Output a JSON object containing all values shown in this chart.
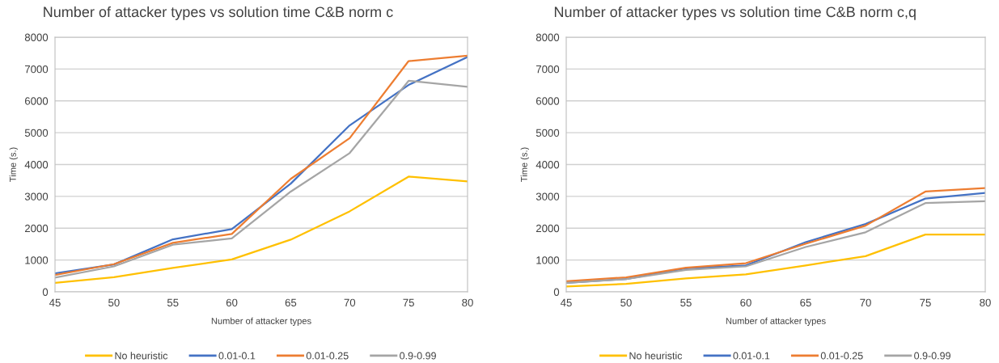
{
  "chart_data": [
    {
      "type": "line",
      "title": "Number of attacker types vs solution time C&B norm c",
      "xlabel": "Number of attacker types",
      "ylabel": "Time (s.)",
      "x": [
        45,
        50,
        55,
        60,
        65,
        70,
        75,
        80
      ],
      "xlim": [
        45,
        80
      ],
      "xticks": [
        45,
        50,
        55,
        60,
        65,
        70,
        75,
        80
      ],
      "ylim": [
        0,
        8000
      ],
      "yticks": [
        0,
        1000,
        2000,
        3000,
        4000,
        5000,
        6000,
        7000,
        8000
      ],
      "grid": "y",
      "legend": "bottom",
      "marker": "none",
      "line_style": "solid",
      "series": [
        {
          "name": "No heuristic",
          "color": "#ffc000",
          "values": [
            280,
            460,
            750,
            1020,
            1640,
            2530,
            3620,
            3470
          ]
        },
        {
          "name": "0.01-0.1",
          "color": "#4472c4",
          "values": [
            580,
            860,
            1650,
            1970,
            3400,
            5230,
            6500,
            7380
          ]
        },
        {
          "name": "0.01-0.25",
          "color": "#ed7d31",
          "values": [
            530,
            870,
            1540,
            1820,
            3550,
            4830,
            7250,
            7420
          ]
        },
        {
          "name": "0.9-0.99",
          "color": "#a5a5a5",
          "values": [
            450,
            800,
            1480,
            1680,
            3150,
            4360,
            6630,
            6440
          ]
        }
      ]
    },
    {
      "type": "line",
      "title": "Number of attacker types vs solution time C&B norm c,q",
      "xlabel": "Number of attacker types",
      "ylabel": "Time (s.)",
      "x": [
        45,
        50,
        55,
        60,
        65,
        70,
        75,
        80
      ],
      "xlim": [
        45,
        80
      ],
      "xticks": [
        45,
        50,
        55,
        60,
        65,
        70,
        75,
        80
      ],
      "ylim": [
        0,
        8000
      ],
      "yticks": [
        0,
        1000,
        2000,
        3000,
        4000,
        5000,
        6000,
        7000,
        8000
      ],
      "grid": "y",
      "legend": "bottom",
      "marker": "none",
      "line_style": "solid",
      "series": [
        {
          "name": "No heuristic",
          "color": "#ffc000",
          "values": [
            170,
            250,
            420,
            550,
            830,
            1120,
            1800,
            1800
          ]
        },
        {
          "name": "0.01-0.1",
          "color": "#4472c4",
          "values": [
            285,
            405,
            740,
            830,
            1560,
            2130,
            2930,
            3110
          ]
        },
        {
          "name": "0.01-0.25",
          "color": "#ed7d31",
          "values": [
            335,
            455,
            760,
            900,
            1510,
            2080,
            3150,
            3260
          ]
        },
        {
          "name": "0.9-0.99",
          "color": "#a5a5a5",
          "values": [
            280,
            400,
            690,
            800,
            1410,
            1870,
            2790,
            2850
          ]
        }
      ]
    }
  ]
}
